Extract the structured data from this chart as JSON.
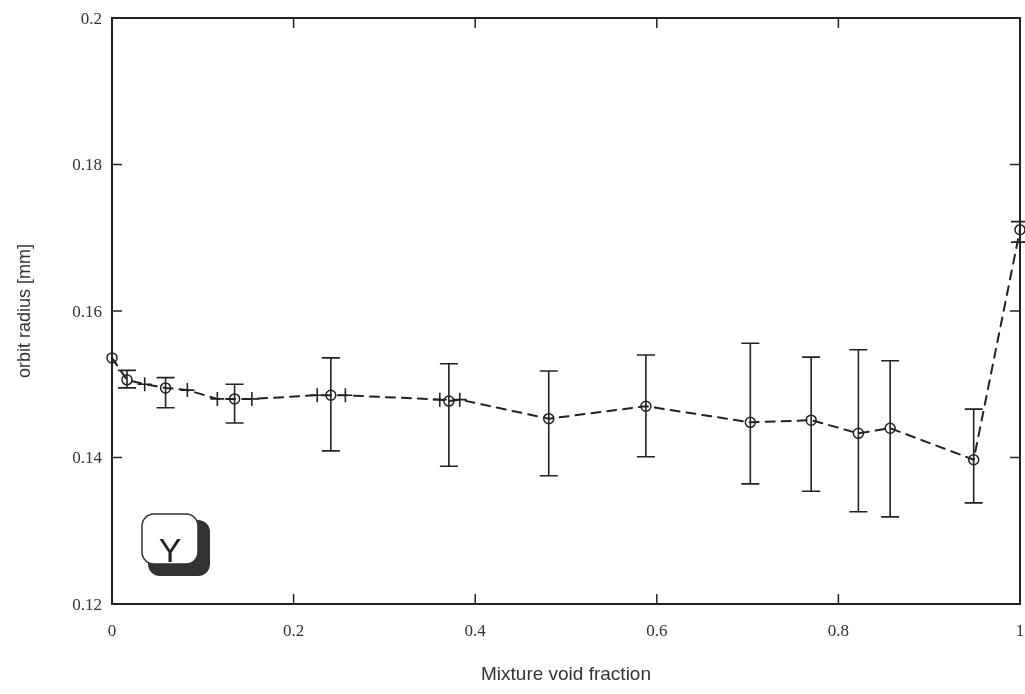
{
  "chart_data": {
    "type": "scatter",
    "xlabel": "Mixture void fraction",
    "ylabel": "orbit radius [mm]",
    "xlim": [
      0,
      1
    ],
    "ylim": [
      0.12,
      0.2
    ],
    "xticks": [
      0,
      0.2,
      0.4,
      0.6,
      0.8,
      1
    ],
    "yticks": [
      0.12,
      0.14,
      0.16,
      0.18,
      0.2
    ],
    "grid": false,
    "annotations": [
      "Y"
    ],
    "series": [
      {
        "type": "line",
        "line_style": "dashed",
        "marker": "none",
        "color": "#222222",
        "x": [
          0,
          0.0165,
          0.036,
          0.059,
          0.083,
          0.116,
          0.135,
          0.154,
          0.226,
          0.241,
          0.257,
          0.361,
          0.371,
          0.383,
          0.481,
          0.588,
          0.703,
          0.77,
          0.822,
          0.857,
          0.949,
          1
        ],
        "values": [
          0.1536,
          0.1506,
          0.15,
          0.1495,
          0.1492,
          0.148,
          0.148,
          0.148,
          0.1485,
          0.1485,
          0.1485,
          0.1479,
          0.1477,
          0.1479,
          0.1453,
          0.147,
          0.1448,
          0.1451,
          0.1433,
          0.144,
          0.1397,
          0.1711
        ]
      },
      {
        "marker": "cross",
        "color": "#222222",
        "x": [
          0.036,
          0.083,
          0.116,
          0.154,
          0.226,
          0.257,
          0.361,
          0.383
        ],
        "values": [
          0.15,
          0.1492,
          0.148,
          0.148,
          0.1485,
          0.1485,
          0.1479,
          0.1479
        ]
      },
      {
        "marker": "circle",
        "color": "#222222",
        "x": [
          0,
          0.0165,
          0.059,
          0.135,
          0.241,
          0.371,
          0.481,
          0.588,
          0.703,
          0.77,
          0.822,
          0.857,
          0.949,
          1
        ],
        "values": [
          0.1536,
          0.1506,
          0.1495,
          0.148,
          0.1485,
          0.1477,
          0.1453,
          0.147,
          0.1448,
          0.1451,
          0.1433,
          0.144,
          0.1397,
          0.1711
        ],
        "errors": [
          null,
          [
            0.1495,
            0.1519
          ],
          [
            0.1468,
            0.1509
          ],
          [
            0.1447,
            0.15
          ],
          [
            0.1409,
            0.1536
          ],
          [
            0.1388,
            0.1528
          ],
          [
            0.1375,
            0.1518
          ],
          [
            0.1401,
            0.154
          ],
          [
            0.1364,
            0.1556
          ],
          [
            0.1354,
            0.1537
          ],
          [
            0.1326,
            0.1547
          ],
          [
            0.1319,
            0.1532
          ],
          [
            0.1338,
            0.1466
          ],
          [
            0.1694,
            0.1722
          ]
        ]
      }
    ]
  }
}
